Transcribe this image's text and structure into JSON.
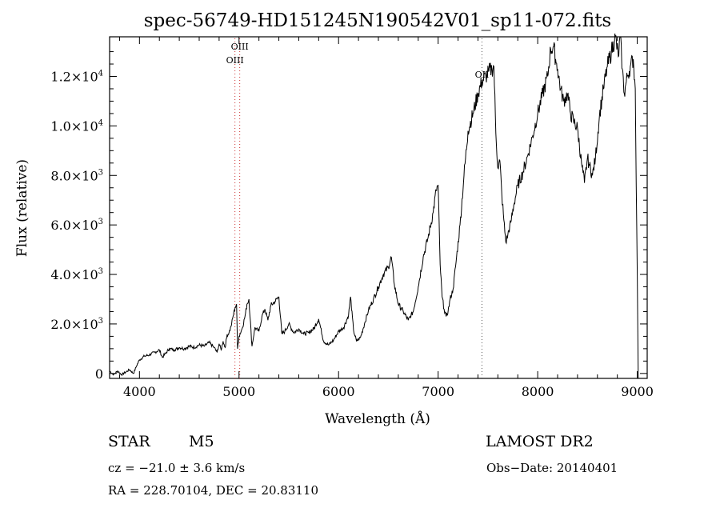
{
  "chart_data": {
    "type": "line",
    "title": "spec-56749-HD151245N190542V01_sp11-072.fits",
    "xlabel": "Wavelength (Å)",
    "ylabel": "Flux (relative)",
    "xlim": [
      3700,
      9100
    ],
    "ylim": [
      -200,
      13600
    ],
    "x_ticks": [
      {
        "value": 4000,
        "label": "4000"
      },
      {
        "value": 5000,
        "label": "5000"
      },
      {
        "value": 6000,
        "label": "6000"
      },
      {
        "value": 7000,
        "label": "7000"
      },
      {
        "value": 8000,
        "label": "8000"
      },
      {
        "value": 9000,
        "label": "9000"
      }
    ],
    "y_ticks": [
      {
        "value": 0,
        "mantissa": "0",
        "exponent": ""
      },
      {
        "value": 2000,
        "mantissa": "2.0×10",
        "exponent": "3"
      },
      {
        "value": 4000,
        "mantissa": "4.0×10",
        "exponent": "3"
      },
      {
        "value": 6000,
        "mantissa": "6.0×10",
        "exponent": "3"
      },
      {
        "value": 8000,
        "mantissa": "8.0×10",
        "exponent": "3"
      },
      {
        "value": 10000,
        "mantissa": "1.0×10",
        "exponent": "4"
      },
      {
        "value": 12000,
        "mantissa": "1.2×10",
        "exponent": "4"
      }
    ],
    "annotations": [
      {
        "label": "OIII",
        "x": 4959,
        "color": "#cc3333"
      },
      {
        "label": "OIII",
        "x": 5007,
        "color": "#cc3333"
      },
      {
        "label": "OII",
        "x": 7440,
        "color": "#555555"
      }
    ],
    "series": [
      {
        "color": "#000000",
        "x": [
          3700,
          3740,
          3780,
          3820,
          3860,
          3900,
          3940,
          3970,
          4000,
          4050,
          4100,
          4150,
          4200,
          4230,
          4260,
          4300,
          4350,
          4400,
          4450,
          4500,
          4550,
          4600,
          4650,
          4700,
          4750,
          4780,
          4800,
          4820,
          4840,
          4860,
          4880,
          4900,
          4920,
          4940,
          4960,
          4975,
          4985,
          5000,
          5030,
          5060,
          5080,
          5100,
          5130,
          5160,
          5200,
          5230,
          5260,
          5290,
          5320,
          5360,
          5400,
          5430,
          5460,
          5500,
          5550,
          5600,
          5650,
          5700,
          5750,
          5800,
          5850,
          5900,
          5950,
          6000,
          6050,
          6100,
          6120,
          6150,
          6180,
          6220,
          6260,
          6300,
          6350,
          6400,
          6450,
          6500,
          6530,
          6560,
          6600,
          6650,
          6700,
          6750,
          6800,
          6850,
          6900,
          6950,
          6980,
          7000,
          7020,
          7040,
          7060,
          7080,
          7100,
          7120,
          7150,
          7180,
          7220,
          7260,
          7300,
          7350,
          7400,
          7440,
          7480,
          7510,
          7540,
          7560,
          7580,
          7600,
          7620,
          7640,
          7660,
          7680,
          7700,
          7730,
          7760,
          7800,
          7850,
          7900,
          7950,
          8000,
          8050,
          8100,
          8130,
          8160,
          8180,
          8200,
          8230,
          8260,
          8300,
          8330,
          8360,
          8400,
          8440,
          8470,
          8500,
          8520,
          8550,
          8580,
          8620,
          8660,
          8700,
          8740,
          8780,
          8810,
          8830,
          8850,
          8870,
          8900,
          8930,
          8960,
          8980,
          9000,
          9010
        ],
        "y": [
          100,
          -50,
          100,
          -50,
          50,
          150,
          0,
          300,
          550,
          700,
          750,
          850,
          950,
          650,
          800,
          1000,
          950,
          1050,
          1000,
          1100,
          1050,
          1150,
          1100,
          1250,
          1050,
          850,
          1200,
          950,
          1300,
          1050,
          1550,
          1650,
          1900,
          2300,
          2650,
          2800,
          1000,
          1500,
          1800,
          2300,
          2800,
          3000,
          1100,
          1850,
          1700,
          2300,
          2600,
          2150,
          2750,
          2900,
          3100,
          1600,
          1700,
          2000,
          1650,
          1800,
          1600,
          1650,
          1800,
          2200,
          1300,
          1150,
          1350,
          1700,
          1850,
          2350,
          3100,
          1750,
          1300,
          1450,
          2000,
          2550,
          3000,
          3500,
          4000,
          4300,
          4700,
          3600,
          2800,
          2500,
          2150,
          2500,
          3500,
          4700,
          5500,
          6500,
          7400,
          7600,
          4400,
          3100,
          2600,
          2300,
          2500,
          3000,
          3400,
          4500,
          6000,
          8000,
          9800,
          10500,
          11300,
          11800,
          12000,
          12200,
          12300,
          12400,
          9700,
          8300,
          8600,
          7200,
          6200,
          5300,
          5600,
          6100,
          6800,
          7600,
          8100,
          8800,
          9600,
          10500,
          11300,
          12000,
          13100,
          13200,
          12700,
          12300,
          11500,
          11000,
          11300,
          10500,
          10200,
          9900,
          8500,
          7700,
          8700,
          8400,
          8000,
          8700,
          10400,
          11500,
          12400,
          13000,
          13600,
          12800,
          13600,
          12300,
          11300,
          12000,
          12400,
          12700,
          11500,
          4000,
          -200
        ]
      }
    ]
  },
  "info": {
    "class_label": "STAR",
    "subclass": "M5",
    "survey": "LAMOST DR2",
    "velocity": "cz = −21.0 ± 3.6 km/s",
    "obs_date": "Obs−Date: 20140401",
    "coords": "RA = 228.70104, DEC =  20.83110"
  }
}
